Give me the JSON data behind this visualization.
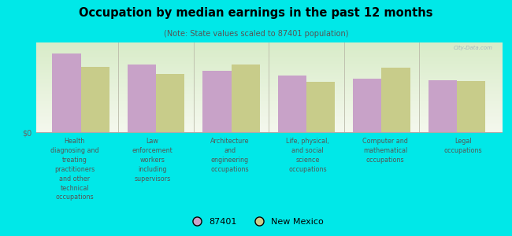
{
  "title": "Occupation by median earnings in the past 12 months",
  "subtitle": "(Note: State values scaled to 87401 population)",
  "categories": [
    "Health\ndiagnosing and\ntreating\npractitioners\nand other\ntechnical\noccupations",
    "Law\nenforcement\nworkers\nincluding\nsupervisors",
    "Architecture\nand\nengineering\noccupations",
    "Life, physical,\nand social\nscience\noccupations",
    "Computer and\nmathematical\noccupations",
    "Legal\noccupations"
  ],
  "values_87401": [
    88,
    75,
    68,
    63,
    60,
    58
  ],
  "values_nm": [
    73,
    65,
    75,
    56,
    72,
    57
  ],
  "color_87401": "#c8a2c8",
  "color_nm": "#c8cc8a",
  "background_color": "#00e8e8",
  "plot_bg_top": "#d8ecc8",
  "plot_bg_bottom": "#f5f8ee",
  "ylabel": "$0",
  "legend_87401": "87401",
  "legend_nm": "New Mexico",
  "watermark": "City-Data.com"
}
